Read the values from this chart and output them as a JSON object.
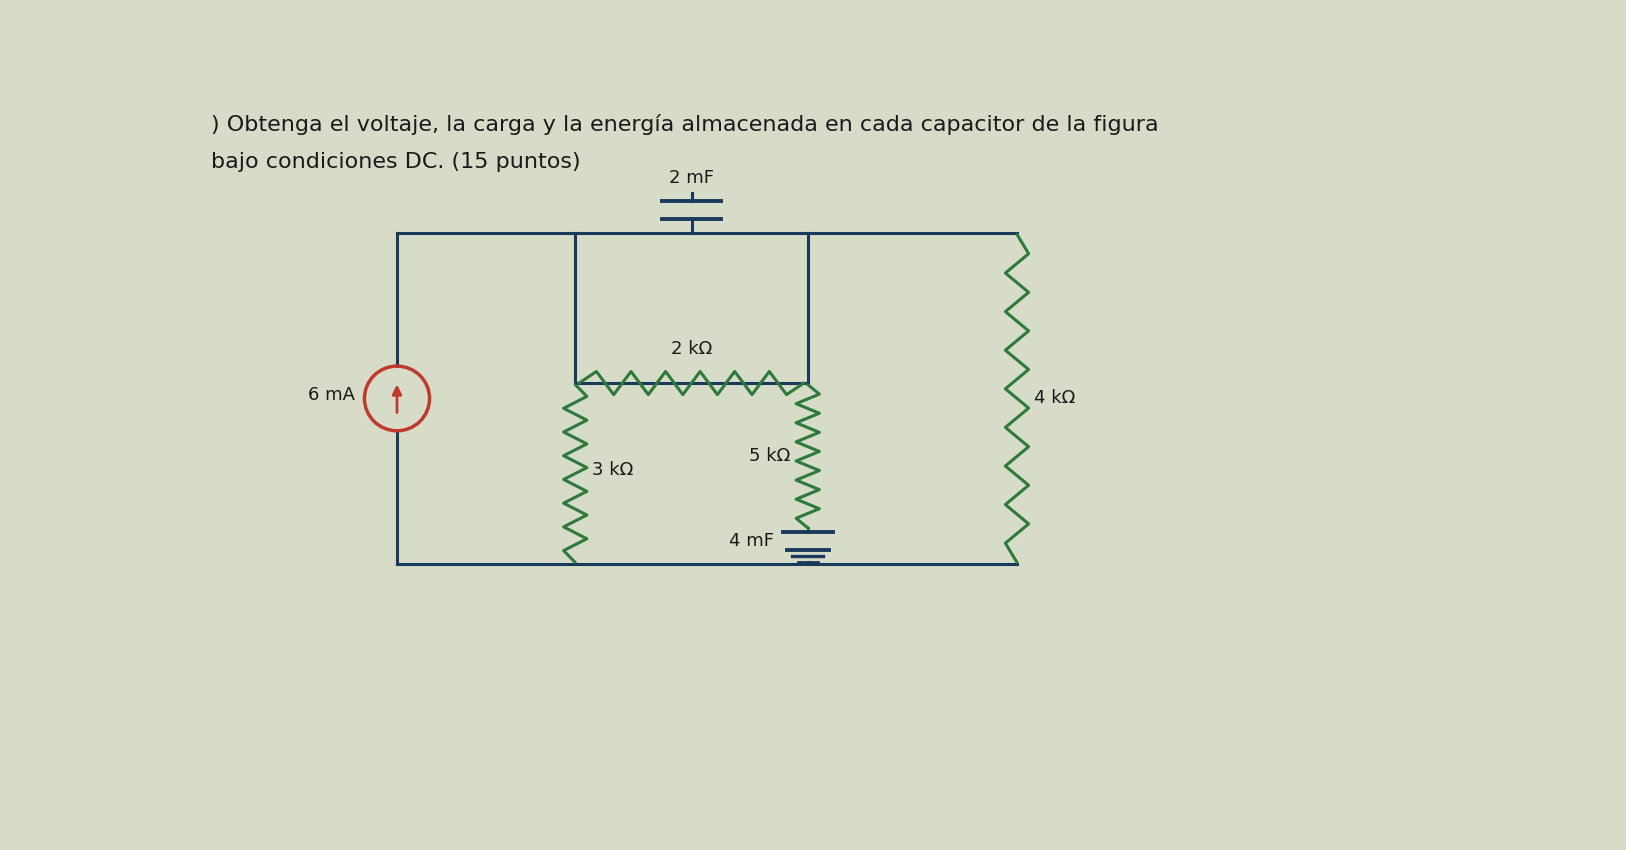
{
  "title_line1": ") Obtenga el voltaje, la carga y la energía almacenada en cada capacitor de la figura",
  "title_line2": "bajo condiciones DC. (15 puntos)",
  "title_fontsize": 16,
  "bg_color": "#d6dcc8",
  "wire_color": "#1a3a5c",
  "green_color": "#2d7a3a",
  "cs_color": "#c0392b",
  "text_color": "#1a1a1a",
  "label_2mF": "2 mF",
  "label_2kΩ": "2 kΩ",
  "label_3kΩ": "3 kΩ",
  "label_4mF": "4 mF",
  "label_5kΩ": "5 kΩ",
  "label_4kΩ": "4 kΩ",
  "label_6mA": "6 mA"
}
